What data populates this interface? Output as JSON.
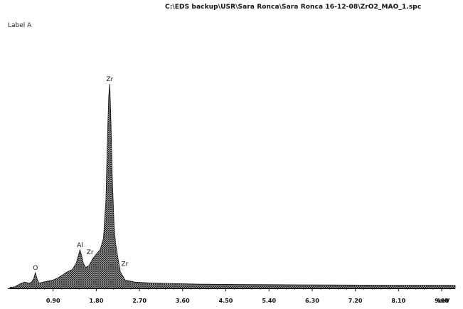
{
  "header": {
    "file_path": "C:\\EDS backup\\USR\\Sara Ronca\\Sara Ronca 16-12-08\\ZrO2_MAO_1.spc",
    "label": "Label A"
  },
  "chart_data": {
    "type": "area",
    "title": "",
    "xlabel": "",
    "ylabel": "",
    "x_unit_label": "keV",
    "xlim": [
      0,
      9.9
    ],
    "ylim": [
      0,
      100
    ],
    "x_ticks": [
      0.9,
      1.8,
      2.7,
      3.6,
      4.5,
      5.4,
      6.3,
      7.2,
      8.1,
      9.0
    ],
    "x_tick_labels": [
      "0.90",
      "1.80",
      "2.70",
      "3.60",
      "4.50",
      "5.40",
      "6.30",
      "7.20",
      "8.10",
      "9.00"
    ],
    "grid": false,
    "legend": "none",
    "series": [
      {
        "x": [
          0.0,
          0.1,
          0.2,
          0.3,
          0.4,
          0.45,
          0.5,
          0.53,
          0.56,
          0.6,
          0.7,
          0.8,
          0.9,
          1.0,
          1.1,
          1.2,
          1.3,
          1.38,
          1.43,
          1.46,
          1.49,
          1.53,
          1.58,
          1.65,
          1.72,
          1.8,
          1.88,
          1.95,
          2.0,
          2.02,
          2.04,
          2.06,
          2.08,
          2.1,
          2.13,
          2.17,
          2.2,
          2.24,
          2.3,
          2.4,
          2.6,
          3.0,
          4.0,
          5.0,
          6.0,
          7.0,
          8.0,
          9.0,
          9.9
        ],
        "y": [
          0.5,
          0.7,
          2.0,
          3.0,
          2.5,
          3.0,
          5.0,
          7.5,
          5.0,
          2.5,
          3.0,
          3.5,
          4.0,
          5.0,
          6.5,
          8.0,
          9.0,
          12.0,
          16.0,
          18.5,
          16.0,
          12.0,
          10.0,
          11.0,
          14.0,
          16.5,
          18.5,
          24.0,
          42.0,
          60.0,
          78.0,
          92.0,
          98.0,
          85.0,
          55.0,
          30.0,
          22.0,
          16.0,
          8.0,
          4.0,
          3.0,
          2.5,
          2.0,
          1.8,
          1.7,
          1.6,
          1.5,
          1.5,
          1.4
        ]
      }
    ],
    "annotations": [
      {
        "text": "O",
        "x": 0.53,
        "y": 7.5
      },
      {
        "text": "Al",
        "x": 1.46,
        "y": 18.5
      },
      {
        "text": "Zr",
        "x": 1.76,
        "y": 15.0
      },
      {
        "text": "Zr",
        "x": 2.08,
        "y": 98.0
      },
      {
        "text": "Zr",
        "x": 2.29,
        "y": 10.0
      }
    ]
  }
}
